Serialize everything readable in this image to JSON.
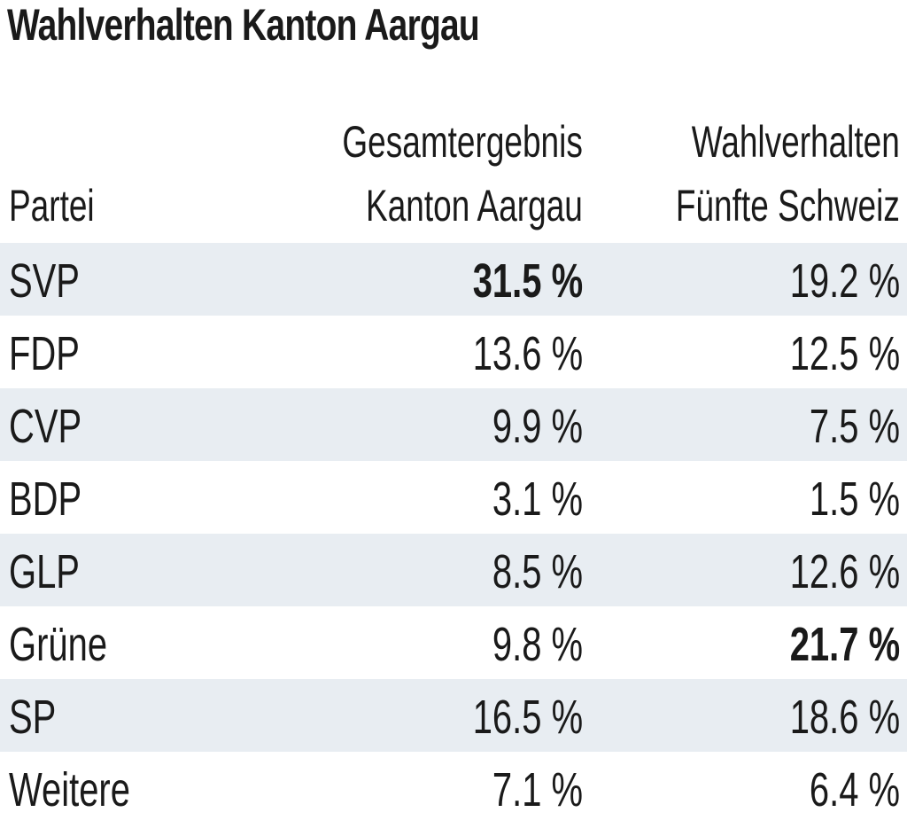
{
  "title": "Wahlverhalten Kanton Aargau",
  "chart_data": {
    "type": "table",
    "title": "Wahlverhalten Kanton Aargau",
    "columns": [
      {
        "lines": [
          "Partei"
        ]
      },
      {
        "lines": [
          "Gesamtergebnis",
          "Kanton Aargau"
        ]
      },
      {
        "lines": [
          "Wahlverhalten",
          "Fünfte Schweiz"
        ]
      }
    ],
    "rows": [
      {
        "party": "SVP",
        "kanton": "31.5 %",
        "fuenfte": "19.2 %",
        "bold": "kanton"
      },
      {
        "party": "FDP",
        "kanton": "13.6 %",
        "fuenfte": "12.5 %",
        "bold": ""
      },
      {
        "party": "CVP",
        "kanton": "9.9 %",
        "fuenfte": "7.5 %",
        "bold": ""
      },
      {
        "party": "BDP",
        "kanton": "3.1 %",
        "fuenfte": "1.5 %",
        "bold": ""
      },
      {
        "party": "GLP",
        "kanton": "8.5 %",
        "fuenfte": "12.6 %",
        "bold": ""
      },
      {
        "party": "Grüne",
        "kanton": "9.8 %",
        "fuenfte": "21.7 %",
        "bold": "fuenfte"
      },
      {
        "party": "SP",
        "kanton": "16.5 %",
        "fuenfte": "18.6 %",
        "bold": ""
      },
      {
        "party": "Weitere",
        "kanton": "7.1 %",
        "fuenfte": "6.4 %",
        "bold": ""
      }
    ],
    "row_shading": "alternating",
    "shade_color": "#e8edf2"
  }
}
